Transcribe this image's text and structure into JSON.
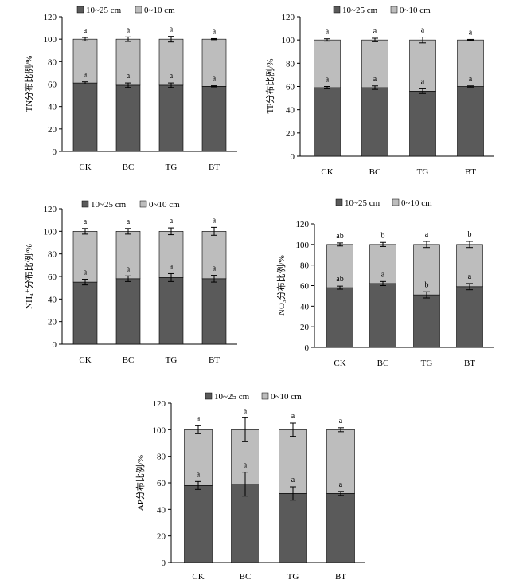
{
  "figure": {
    "colors": {
      "dark": "#5a5a5a",
      "light": "#bdbdbd"
    }
  },
  "chart_data": [
    {
      "type": "bar",
      "stacked": true,
      "categories": [
        "CK",
        "BC",
        "TG",
        "BT"
      ],
      "ylabel": "TN分布比例/%",
      "ylim": [
        0,
        120
      ],
      "yticks": [
        "0",
        "20",
        "40",
        "60",
        "80",
        "100",
        "120"
      ],
      "legend": "top",
      "series": [
        {
          "name": "10~25 cm",
          "values": [
            61,
            59,
            59,
            58
          ],
          "errors": [
            1,
            2,
            2,
            0.5
          ]
        },
        {
          "name": "0~10 cm",
          "values": [
            39,
            41,
            41,
            42
          ],
          "errors": [
            1.5,
            2,
            2.5,
            0.5
          ]
        }
      ],
      "letters_bottom": [
        "a",
        "a",
        "a",
        "a"
      ],
      "letters_top": [
        "a",
        "a",
        "a",
        "a"
      ]
    },
    {
      "type": "bar",
      "stacked": true,
      "categories": [
        "CK",
        "BC",
        "TG",
        "BT"
      ],
      "ylabel": "TP分布比例/%",
      "ylim": [
        0,
        120
      ],
      "yticks": [
        "0",
        "20",
        "40",
        "60",
        "80",
        "100",
        "120"
      ],
      "legend": "top",
      "series": [
        {
          "name": "10~25 cm",
          "values": [
            59,
            59,
            56,
            60
          ],
          "errors": [
            1,
            1.5,
            2,
            0.5
          ]
        },
        {
          "name": "0~10 cm",
          "values": [
            41,
            41,
            44,
            40
          ],
          "errors": [
            1,
            1.5,
            2.5,
            0.5
          ]
        }
      ],
      "letters_bottom": [
        "a",
        "a",
        "a",
        "a"
      ],
      "letters_top": [
        "a",
        "a",
        "a",
        "a"
      ]
    },
    {
      "type": "bar",
      "stacked": true,
      "categories": [
        "CK",
        "BC",
        "TG",
        "BT"
      ],
      "ylabel": "NH₄⁺分布比例/%",
      "ylim": [
        0,
        120
      ],
      "yticks": [
        "0",
        "20",
        "40",
        "60",
        "80",
        "100",
        "120"
      ],
      "legend": "top",
      "series": [
        {
          "name": "10~25 cm",
          "values": [
            55,
            58,
            59,
            58
          ],
          "errors": [
            2.5,
            2.5,
            3.5,
            3
          ]
        },
        {
          "name": "0~10 cm",
          "values": [
            45,
            42,
            41,
            42
          ],
          "errors": [
            2.5,
            2.5,
            3,
            3.5
          ]
        }
      ],
      "letters_bottom": [
        "a",
        "a",
        "a",
        "a"
      ],
      "letters_top": [
        "a",
        "a",
        "a",
        "a"
      ]
    },
    {
      "type": "bar",
      "stacked": true,
      "categories": [
        "CK",
        "BC",
        "TG",
        "BT"
      ],
      "ylabel": "NO₃分布比例/%",
      "ylim": [
        0,
        120
      ],
      "yticks": [
        "0",
        "20",
        "40",
        "60",
        "80",
        "100",
        "120"
      ],
      "legend": "top",
      "series": [
        {
          "name": "10~25 cm",
          "values": [
            58,
            62,
            51,
            59
          ],
          "errors": [
            1.5,
            2,
            3,
            3
          ]
        },
        {
          "name": "0~10 cm",
          "values": [
            42,
            38,
            49,
            41
          ],
          "errors": [
            1.5,
            2,
            3,
            3
          ]
        }
      ],
      "letters_bottom": [
        "ab",
        "a",
        "b",
        "a"
      ],
      "letters_top": [
        "ab",
        "b",
        "a",
        "b"
      ]
    },
    {
      "type": "bar",
      "stacked": true,
      "categories": [
        "CK",
        "BC",
        "TG",
        "BT"
      ],
      "ylabel": "AP分布比例/%",
      "ylim": [
        0,
        120
      ],
      "yticks": [
        "0",
        "20",
        "40",
        "60",
        "80",
        "100",
        "120"
      ],
      "legend": "top",
      "series": [
        {
          "name": "10~25 cm",
          "values": [
            58,
            59,
            52,
            52
          ],
          "errors": [
            3,
            9,
            5,
            1.5
          ]
        },
        {
          "name": "0~10 cm",
          "values": [
            42,
            41,
            48,
            48
          ],
          "errors": [
            3,
            9,
            5,
            1.5
          ]
        }
      ],
      "letters_bottom": [
        "a",
        "a",
        "a",
        "a"
      ],
      "letters_top": [
        "a",
        "a",
        "a",
        "a"
      ]
    }
  ]
}
